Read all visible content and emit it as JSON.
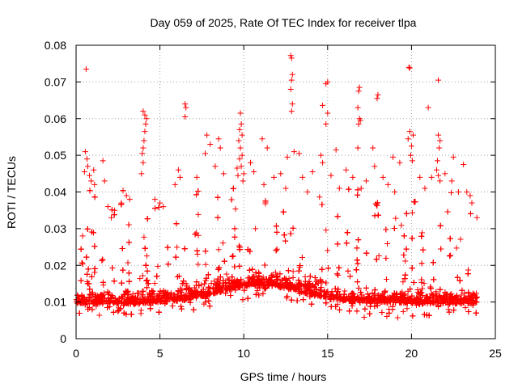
{
  "chart_data": {
    "type": "scatter",
    "title": "Day 059 of 2025, Rate Of TEC Index for receiver tlpa",
    "xlabel": "GPS time / hours",
    "ylabel": "ROTI / TECUs",
    "xlim": [
      0,
      25
    ],
    "ylim": [
      0,
      0.08
    ],
    "xticks": [
      0,
      5,
      10,
      15,
      20,
      25
    ],
    "yticks": [
      0,
      0.01,
      0.02,
      0.03,
      0.04,
      0.05,
      0.06,
      0.07,
      0.08
    ],
    "ytick_labels": [
      "0",
      "0.01",
      "0.02",
      "0.03",
      "0.04",
      "0.05",
      "0.06",
      "0.07",
      "0.08"
    ],
    "grid": true,
    "marker": "+",
    "color": "#ff0000",
    "series": [
      {
        "name": "ROTI",
        "points": [
          [
            0.6,
            0.0735
          ],
          [
            12.8,
            0.0772
          ],
          [
            12.85,
            0.0765
          ],
          [
            12.9,
            0.072
          ],
          [
            12.85,
            0.0705
          ],
          [
            12.8,
            0.068
          ],
          [
            12.9,
            0.064
          ],
          [
            12.85,
            0.062
          ],
          [
            19.85,
            0.074
          ],
          [
            19.9,
            0.0738
          ],
          [
            21.6,
            0.0705
          ],
          [
            15.0,
            0.07
          ],
          [
            14.9,
            0.0695
          ],
          [
            14.7,
            0.0636
          ],
          [
            15.0,
            0.0615
          ],
          [
            14.9,
            0.0585
          ],
          [
            16.9,
            0.0685
          ],
          [
            16.85,
            0.0675
          ],
          [
            18.0,
            0.0665
          ],
          [
            17.95,
            0.0655
          ],
          [
            21.0,
            0.063
          ],
          [
            16.8,
            0.063
          ],
          [
            16.9,
            0.06
          ],
          [
            16.85,
            0.0585
          ],
          [
            16.95,
            0.0595
          ],
          [
            6.5,
            0.064
          ],
          [
            6.55,
            0.063
          ],
          [
            6.5,
            0.0605
          ],
          [
            4.0,
            0.062
          ],
          [
            4.1,
            0.061
          ],
          [
            4.2,
            0.06
          ],
          [
            4.15,
            0.0585
          ],
          [
            4.1,
            0.0565
          ],
          [
            4.05,
            0.054
          ],
          [
            4.0,
            0.052
          ],
          [
            3.95,
            0.0505
          ],
          [
            4.0,
            0.048
          ],
          [
            3.9,
            0.045
          ],
          [
            9.8,
            0.0615
          ],
          [
            9.85,
            0.0585
          ],
          [
            9.75,
            0.057
          ],
          [
            9.9,
            0.0555
          ],
          [
            9.7,
            0.054
          ],
          [
            9.8,
            0.052
          ],
          [
            9.9,
            0.05
          ],
          [
            9.75,
            0.049
          ],
          [
            9.85,
            0.047
          ],
          [
            9.6,
            0.0465
          ],
          [
            10.0,
            0.045
          ],
          [
            9.65,
            0.0445
          ],
          [
            9.95,
            0.043
          ],
          [
            19.9,
            0.0565
          ],
          [
            20.1,
            0.0555
          ],
          [
            19.8,
            0.0545
          ],
          [
            20.0,
            0.0525
          ],
          [
            19.95,
            0.05
          ],
          [
            20.05,
            0.0485
          ],
          [
            21.6,
            0.0555
          ],
          [
            21.7,
            0.054
          ],
          [
            21.65,
            0.052
          ],
          [
            21.55,
            0.0485
          ],
          [
            21.5,
            0.046
          ],
          [
            21.6,
            0.0445
          ],
          [
            21.7,
            0.043
          ],
          [
            7.8,
            0.0555
          ],
          [
            8.0,
            0.053
          ],
          [
            8.5,
            0.0545
          ],
          [
            8.6,
            0.052
          ],
          [
            7.7,
            0.0505
          ],
          [
            11.1,
            0.0545
          ],
          [
            11.4,
            0.052
          ],
          [
            13.0,
            0.051
          ],
          [
            13.3,
            0.0505
          ],
          [
            12.6,
            0.0495
          ],
          [
            16.8,
            0.052
          ],
          [
            17.7,
            0.052
          ],
          [
            15.5,
            0.0515
          ],
          [
            14.6,
            0.05
          ],
          [
            14.7,
            0.048
          ],
          [
            17.8,
            0.047
          ],
          [
            18.9,
            0.0495
          ],
          [
            19.3,
            0.048
          ],
          [
            22.5,
            0.0495
          ],
          [
            23.1,
            0.0475
          ],
          [
            0.55,
            0.051
          ],
          [
            0.65,
            0.049
          ],
          [
            0.7,
            0.047
          ],
          [
            0.5,
            0.0455
          ],
          [
            0.8,
            0.0445
          ],
          [
            0.9,
            0.043
          ],
          [
            1.05,
            0.046
          ],
          [
            1.1,
            0.042
          ],
          [
            1.6,
            0.0485
          ],
          [
            1.7,
            0.043
          ],
          [
            6.1,
            0.046
          ],
          [
            6.2,
            0.044
          ],
          [
            5.9,
            0.042
          ],
          [
            7.2,
            0.044
          ],
          [
            8.3,
            0.047
          ],
          [
            8.8,
            0.045
          ],
          [
            10.4,
            0.048
          ],
          [
            10.6,
            0.0455
          ],
          [
            11.8,
            0.044
          ],
          [
            12.2,
            0.045
          ],
          [
            13.5,
            0.044
          ],
          [
            14.1,
            0.0455
          ],
          [
            15.2,
            0.0445
          ],
          [
            16.1,
            0.046
          ],
          [
            16.5,
            0.044
          ],
          [
            17.3,
            0.043
          ],
          [
            18.3,
            0.044
          ],
          [
            18.6,
            0.042
          ],
          [
            20.5,
            0.044
          ],
          [
            21.2,
            0.044
          ],
          [
            22.0,
            0.045
          ],
          [
            22.4,
            0.043
          ],
          [
            23.3,
            0.04
          ],
          [
            23.5,
            0.039
          ],
          [
            23.6,
            0.037
          ],
          [
            23.9,
            0.033
          ],
          [
            3.0,
            0.039
          ],
          [
            3.2,
            0.038
          ],
          [
            2.7,
            0.037
          ],
          [
            5.0,
            0.037
          ],
          [
            5.2,
            0.036
          ],
          [
            4.7,
            0.038
          ],
          [
            2.3,
            0.035
          ],
          [
            2.1,
            0.033
          ],
          [
            1.9,
            0.036
          ],
          [
            11.2,
            0.042
          ],
          [
            12.5,
            0.041
          ],
          [
            13.8,
            0.04
          ],
          [
            15.7,
            0.041
          ],
          [
            17.0,
            0.041
          ],
          [
            19.0,
            0.04
          ],
          [
            20.8,
            0.041
          ],
          [
            22.8,
            0.04
          ]
        ]
      }
    ]
  }
}
